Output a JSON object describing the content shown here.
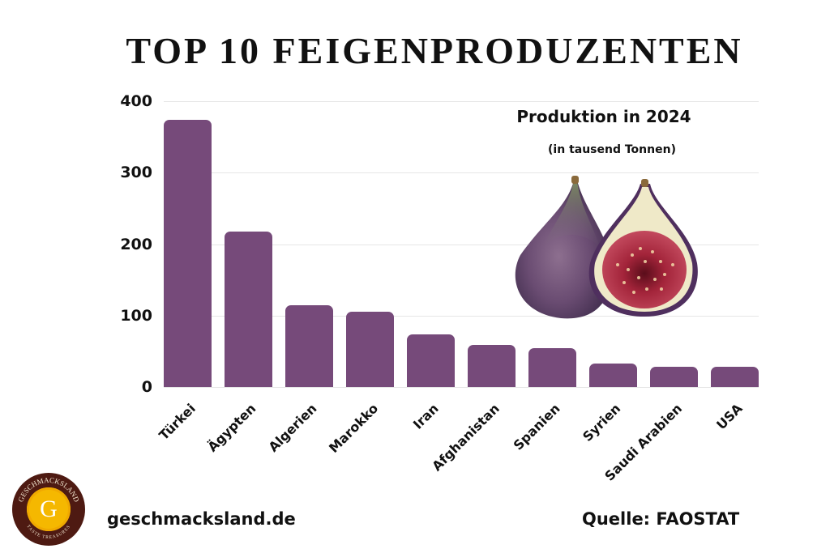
{
  "title": "TOP 10 FEIGENPRODUZENTEN",
  "subtitle": "Produktion in 2024",
  "unit_note": "(in tausend Tonnen)",
  "footer": {
    "website": "geschmacksland.de",
    "source": "Quelle: FAOSTAT",
    "logo": {
      "top_text": "GESCHMACKSLAND",
      "bottom_text": "TASTE TREASURES",
      "letter": "G",
      "colors": {
        "ring": "#4e1a12",
        "center": "#f5b800"
      }
    }
  },
  "image": {
    "name": "fig-illustration",
    "description": "whole fig and halved fig watercolor"
  },
  "colors": {
    "bar": "#764a7a",
    "grid": "#e6e6e6",
    "text": "#111111"
  },
  "y_ticks": [
    "400",
    "300",
    "200",
    "100",
    "0"
  ],
  "chart_data": {
    "type": "bar",
    "title": "TOP 10 FEIGENPRODUZENTEN",
    "subtitle": "Produktion in 2024 (in tausend Tonnen)",
    "categories": [
      "Türkei",
      "Ägypten",
      "Algerien",
      "Marokko",
      "Iran",
      "Afghanistan",
      "Spanien",
      "Syrien",
      "Saudi Arabien",
      "USA"
    ],
    "values": [
      374,
      217,
      114,
      105,
      74,
      59,
      54,
      33,
      28,
      28
    ],
    "xlabel": "",
    "ylabel": "",
    "ylim": [
      0,
      400
    ],
    "yticks": [
      0,
      100,
      200,
      300,
      400
    ],
    "grid": true,
    "legend": "none",
    "source": "FAOSTAT"
  }
}
